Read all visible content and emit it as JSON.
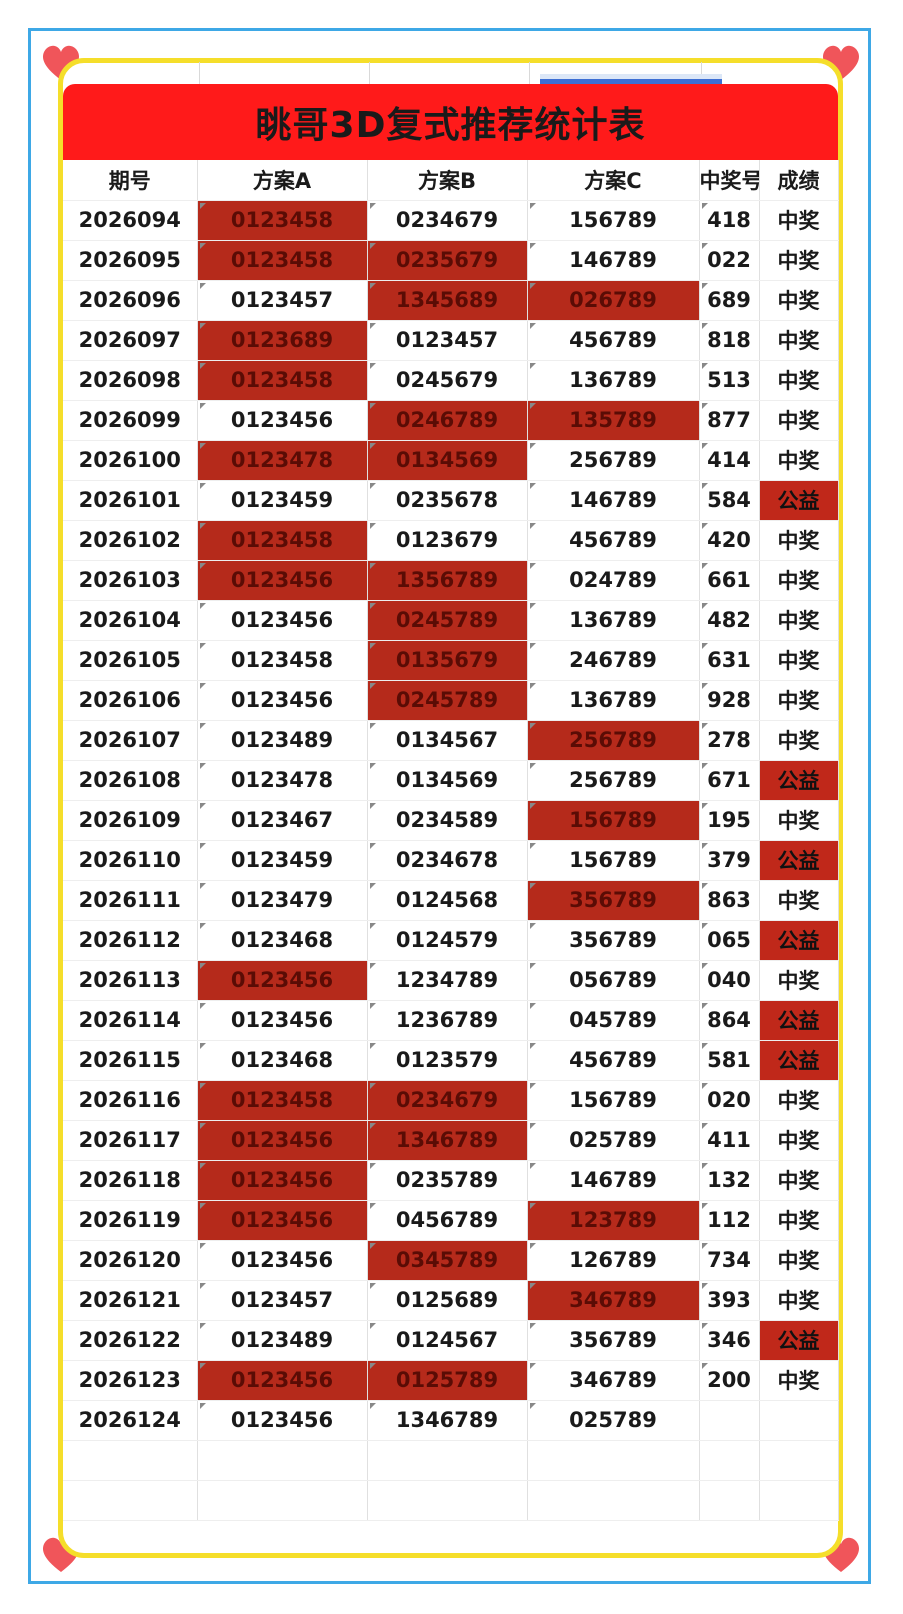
{
  "title": "眺哥3D复式推荐统计表",
  "colors": {
    "banner": "#ff1a1a",
    "highlight": "#b52a1b",
    "frame_yellow": "#f5de2a",
    "frame_blue": "#3ea8e6",
    "heart": "#f0555a"
  },
  "headers": [
    "期号",
    "方案A",
    "方案B",
    "方案C",
    "中奖号",
    "成绩"
  ],
  "rows": [
    {
      "qihao": "2026094",
      "a": "0123458",
      "a_hl": true,
      "b": "0234679",
      "b_hl": false,
      "c": "156789",
      "c_hl": false,
      "win": "418",
      "res": "中奖",
      "res_hl": false
    },
    {
      "qihao": "2026095",
      "a": "0123458",
      "a_hl": true,
      "b": "0235679",
      "b_hl": true,
      "c": "146789",
      "c_hl": false,
      "win": "022",
      "res": "中奖",
      "res_hl": false
    },
    {
      "qihao": "2026096",
      "a": "0123457",
      "a_hl": false,
      "b": "1345689",
      "b_hl": true,
      "c": "026789",
      "c_hl": true,
      "win": "689",
      "res": "中奖",
      "res_hl": false
    },
    {
      "qihao": "2026097",
      "a": "0123689",
      "a_hl": true,
      "b": "0123457",
      "b_hl": false,
      "c": "456789",
      "c_hl": false,
      "win": "818",
      "res": "中奖",
      "res_hl": false
    },
    {
      "qihao": "2026098",
      "a": "0123458",
      "a_hl": true,
      "b": "0245679",
      "b_hl": false,
      "c": "136789",
      "c_hl": false,
      "win": "513",
      "res": "中奖",
      "res_hl": false
    },
    {
      "qihao": "2026099",
      "a": "0123456",
      "a_hl": false,
      "b": "0246789",
      "b_hl": true,
      "c": "135789",
      "c_hl": true,
      "win": "877",
      "res": "中奖",
      "res_hl": false
    },
    {
      "qihao": "2026100",
      "a": "0123478",
      "a_hl": true,
      "b": "0134569",
      "b_hl": true,
      "c": "256789",
      "c_hl": false,
      "win": "414",
      "res": "中奖",
      "res_hl": false
    },
    {
      "qihao": "2026101",
      "a": "0123459",
      "a_hl": false,
      "b": "0235678",
      "b_hl": false,
      "c": "146789",
      "c_hl": false,
      "win": "584",
      "res": "公益",
      "res_hl": true
    },
    {
      "qihao": "2026102",
      "a": "0123458",
      "a_hl": true,
      "b": "0123679",
      "b_hl": false,
      "c": "456789",
      "c_hl": false,
      "win": "420",
      "res": "中奖",
      "res_hl": false
    },
    {
      "qihao": "2026103",
      "a": "0123456",
      "a_hl": true,
      "b": "1356789",
      "b_hl": true,
      "c": "024789",
      "c_hl": false,
      "win": "661",
      "res": "中奖",
      "res_hl": false
    },
    {
      "qihao": "2026104",
      "a": "0123456",
      "a_hl": false,
      "b": "0245789",
      "b_hl": true,
      "c": "136789",
      "c_hl": false,
      "win": "482",
      "res": "中奖",
      "res_hl": false
    },
    {
      "qihao": "2026105",
      "a": "0123458",
      "a_hl": false,
      "b": "0135679",
      "b_hl": true,
      "c": "246789",
      "c_hl": false,
      "win": "631",
      "res": "中奖",
      "res_hl": false
    },
    {
      "qihao": "2026106",
      "a": "0123456",
      "a_hl": false,
      "b": "0245789",
      "b_hl": true,
      "c": "136789",
      "c_hl": false,
      "win": "928",
      "res": "中奖",
      "res_hl": false
    },
    {
      "qihao": "2026107",
      "a": "0123489",
      "a_hl": false,
      "b": "0134567",
      "b_hl": false,
      "c": "256789",
      "c_hl": true,
      "win": "278",
      "res": "中奖",
      "res_hl": false
    },
    {
      "qihao": "2026108",
      "a": "0123478",
      "a_hl": false,
      "b": "0134569",
      "b_hl": false,
      "c": "256789",
      "c_hl": false,
      "win": "671",
      "res": "公益",
      "res_hl": true
    },
    {
      "qihao": "2026109",
      "a": "0123467",
      "a_hl": false,
      "b": "0234589",
      "b_hl": false,
      "c": "156789",
      "c_hl": true,
      "win": "195",
      "res": "中奖",
      "res_hl": false
    },
    {
      "qihao": "2026110",
      "a": "0123459",
      "a_hl": false,
      "b": "0234678",
      "b_hl": false,
      "c": "156789",
      "c_hl": false,
      "win": "379",
      "res": "公益",
      "res_hl": true
    },
    {
      "qihao": "2026111",
      "a": "0123479",
      "a_hl": false,
      "b": "0124568",
      "b_hl": false,
      "c": "356789",
      "c_hl": true,
      "win": "863",
      "res": "中奖",
      "res_hl": false
    },
    {
      "qihao": "2026112",
      "a": "0123468",
      "a_hl": false,
      "b": "0124579",
      "b_hl": false,
      "c": "356789",
      "c_hl": false,
      "win": "065",
      "res": "公益",
      "res_hl": true
    },
    {
      "qihao": "2026113",
      "a": "0123456",
      "a_hl": true,
      "b": "1234789",
      "b_hl": false,
      "c": "056789",
      "c_hl": false,
      "win": "040",
      "res": "中奖",
      "res_hl": false
    },
    {
      "qihao": "2026114",
      "a": "0123456",
      "a_hl": false,
      "b": "1236789",
      "b_hl": false,
      "c": "045789",
      "c_hl": false,
      "win": "864",
      "res": "公益",
      "res_hl": true
    },
    {
      "qihao": "2026115",
      "a": "0123468",
      "a_hl": false,
      "b": "0123579",
      "b_hl": false,
      "c": "456789",
      "c_hl": false,
      "win": "581",
      "res": "公益",
      "res_hl": true
    },
    {
      "qihao": "2026116",
      "a": "0123458",
      "a_hl": true,
      "b": "0234679",
      "b_hl": true,
      "c": "156789",
      "c_hl": false,
      "win": "020",
      "res": "中奖",
      "res_hl": false
    },
    {
      "qihao": "2026117",
      "a": "0123456",
      "a_hl": true,
      "b": "1346789",
      "b_hl": true,
      "c": "025789",
      "c_hl": false,
      "win": "411",
      "res": "中奖",
      "res_hl": false
    },
    {
      "qihao": "2026118",
      "a": "0123456",
      "a_hl": true,
      "b": "0235789",
      "b_hl": false,
      "c": "146789",
      "c_hl": false,
      "win": "132",
      "res": "中奖",
      "res_hl": false
    },
    {
      "qihao": "2026119",
      "a": "0123456",
      "a_hl": true,
      "b": "0456789",
      "b_hl": false,
      "c": "123789",
      "c_hl": true,
      "win": "112",
      "res": "中奖",
      "res_hl": false
    },
    {
      "qihao": "2026120",
      "a": "0123456",
      "a_hl": false,
      "b": "0345789",
      "b_hl": true,
      "c": "126789",
      "c_hl": false,
      "win": "734",
      "res": "中奖",
      "res_hl": false
    },
    {
      "qihao": "2026121",
      "a": "0123457",
      "a_hl": false,
      "b": "0125689",
      "b_hl": false,
      "c": "346789",
      "c_hl": true,
      "win": "393",
      "res": "中奖",
      "res_hl": false
    },
    {
      "qihao": "2026122",
      "a": "0123489",
      "a_hl": false,
      "b": "0124567",
      "b_hl": false,
      "c": "356789",
      "c_hl": false,
      "win": "346",
      "res": "公益",
      "res_hl": true
    },
    {
      "qihao": "2026123",
      "a": "0123456",
      "a_hl": true,
      "b": "0125789",
      "b_hl": true,
      "c": "346789",
      "c_hl": false,
      "win": "200",
      "res": "中奖",
      "res_hl": false
    },
    {
      "qihao": "2026124",
      "a": "0123456",
      "a_hl": false,
      "b": "1346789",
      "b_hl": false,
      "c": "025789",
      "c_hl": false,
      "win": "",
      "res": "",
      "res_hl": false
    }
  ]
}
